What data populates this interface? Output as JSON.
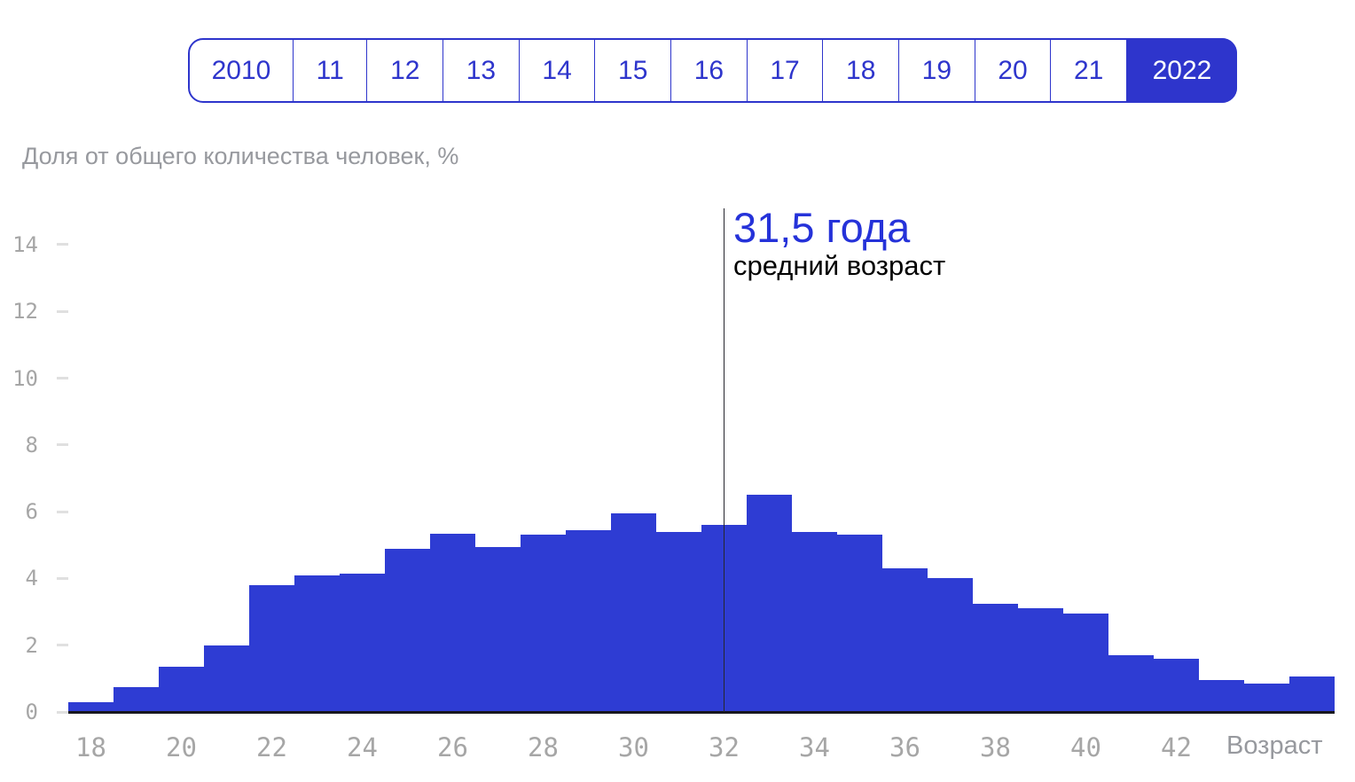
{
  "year_selector": {
    "years": [
      "2010",
      "11",
      "12",
      "13",
      "14",
      "15",
      "16",
      "17",
      "18",
      "19",
      "20",
      "21",
      "2022"
    ],
    "selected": "2022"
  },
  "annotation": {
    "value": "31,5 года",
    "label": "средний возраст"
  },
  "chart_data": {
    "type": "bar",
    "title": "Доля от общего количества человек, %",
    "xlabel": "Возраст",
    "ylabel": "Доля от общего количества человек, %",
    "x": [
      18,
      19,
      20,
      21,
      22,
      23,
      24,
      25,
      26,
      27,
      28,
      29,
      30,
      31,
      32,
      33,
      34,
      35,
      36,
      37,
      38,
      39,
      40,
      41,
      42,
      43,
      44,
      45
    ],
    "values": [
      0.3,
      0.75,
      1.35,
      2.0,
      3.8,
      4.1,
      4.15,
      4.9,
      5.35,
      4.95,
      5.3,
      5.45,
      5.95,
      5.4,
      5.6,
      6.5,
      5.4,
      5.3,
      4.3,
      4.0,
      3.25,
      3.1,
      2.95,
      1.7,
      1.6,
      0.95,
      0.85,
      1.05
    ],
    "y_ticks": [
      0,
      2,
      4,
      6,
      8,
      10,
      12,
      14
    ],
    "x_ticks": [
      18,
      20,
      22,
      24,
      26,
      28,
      30,
      32,
      34,
      36,
      38,
      40,
      42
    ],
    "ylim": [
      0,
      15
    ],
    "average_age": 31.5,
    "average_line_at_age": 32,
    "grid": "off",
    "legend": "none"
  },
  "colors": {
    "accent_blue": "#2E35CC",
    "bar_blue": "#2E3CD3",
    "annotation_blue": "#2532D9",
    "axis_gray": "#A6A6A6",
    "title_gray": "#97999E",
    "tick_gray": "#E0E0E0",
    "baseline_dark": "#17171F",
    "line_dark": "#26262E"
  }
}
